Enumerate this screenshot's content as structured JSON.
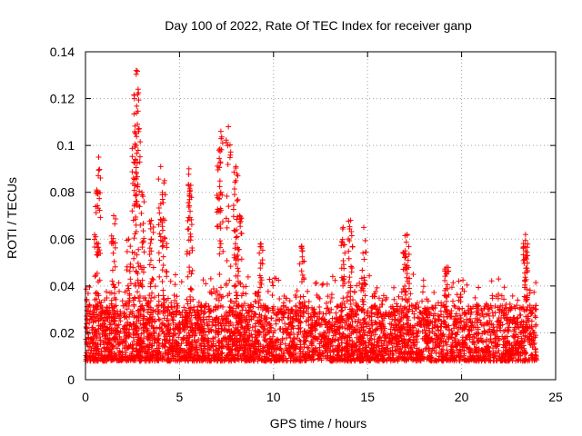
{
  "chart_data": {
    "type": "scatter",
    "title": "Day 100 of 2022, Rate Of TEC Index for receiver ganp",
    "xlabel": "GPS time / hours",
    "ylabel": "ROTI / TECUs",
    "xlim": [
      0,
      25
    ],
    "ylim": [
      0,
      0.14
    ],
    "xticks": [
      0,
      5,
      10,
      15,
      20,
      25
    ],
    "xtick_labels": [
      "0",
      "5",
      "10",
      "15",
      "20",
      "25"
    ],
    "yticks": [
      0,
      0.02,
      0.04,
      0.06,
      0.08,
      0.1,
      0.12,
      0.14
    ],
    "ytick_labels": [
      "0",
      "0.02",
      "0.04",
      "0.06",
      "0.08",
      "0.1",
      "0.12",
      "0.14"
    ],
    "grid": true,
    "marker": "+",
    "color": "#ff0000",
    "series": [
      {
        "name": "ROTI",
        "x_range": [
          0,
          24
        ],
        "baseline_range": [
          0.008,
          0.025
        ],
        "peaks": [
          {
            "x": 0.7,
            "y": 0.095
          },
          {
            "x": 0.6,
            "y": 0.081
          },
          {
            "x": 1.5,
            "y": 0.07
          },
          {
            "x": 2.3,
            "y": 0.06
          },
          {
            "x": 2.7,
            "y": 0.132
          },
          {
            "x": 2.8,
            "y": 0.124
          },
          {
            "x": 2.6,
            "y": 0.12
          },
          {
            "x": 2.7,
            "y": 0.1
          },
          {
            "x": 3.0,
            "y": 0.08
          },
          {
            "x": 3.5,
            "y": 0.068
          },
          {
            "x": 4.0,
            "y": 0.091
          },
          {
            "x": 4.2,
            "y": 0.085
          },
          {
            "x": 5.5,
            "y": 0.09
          },
          {
            "x": 5.6,
            "y": 0.083
          },
          {
            "x": 7.2,
            "y": 0.106
          },
          {
            "x": 7.1,
            "y": 0.098
          },
          {
            "x": 7.6,
            "y": 0.108
          },
          {
            "x": 8.0,
            "y": 0.091
          },
          {
            "x": 8.0,
            "y": 0.085
          },
          {
            "x": 8.2,
            "y": 0.07
          },
          {
            "x": 9.3,
            "y": 0.058
          },
          {
            "x": 11.5,
            "y": 0.057
          },
          {
            "x": 13.7,
            "y": 0.065
          },
          {
            "x": 14.1,
            "y": 0.068
          },
          {
            "x": 14.8,
            "y": 0.065
          },
          {
            "x": 17.1,
            "y": 0.062
          },
          {
            "x": 17.0,
            "y": 0.055
          },
          {
            "x": 19.2,
            "y": 0.048
          },
          {
            "x": 23.4,
            "y": 0.062
          },
          {
            "x": 23.4,
            "y": 0.055
          }
        ]
      }
    ]
  }
}
